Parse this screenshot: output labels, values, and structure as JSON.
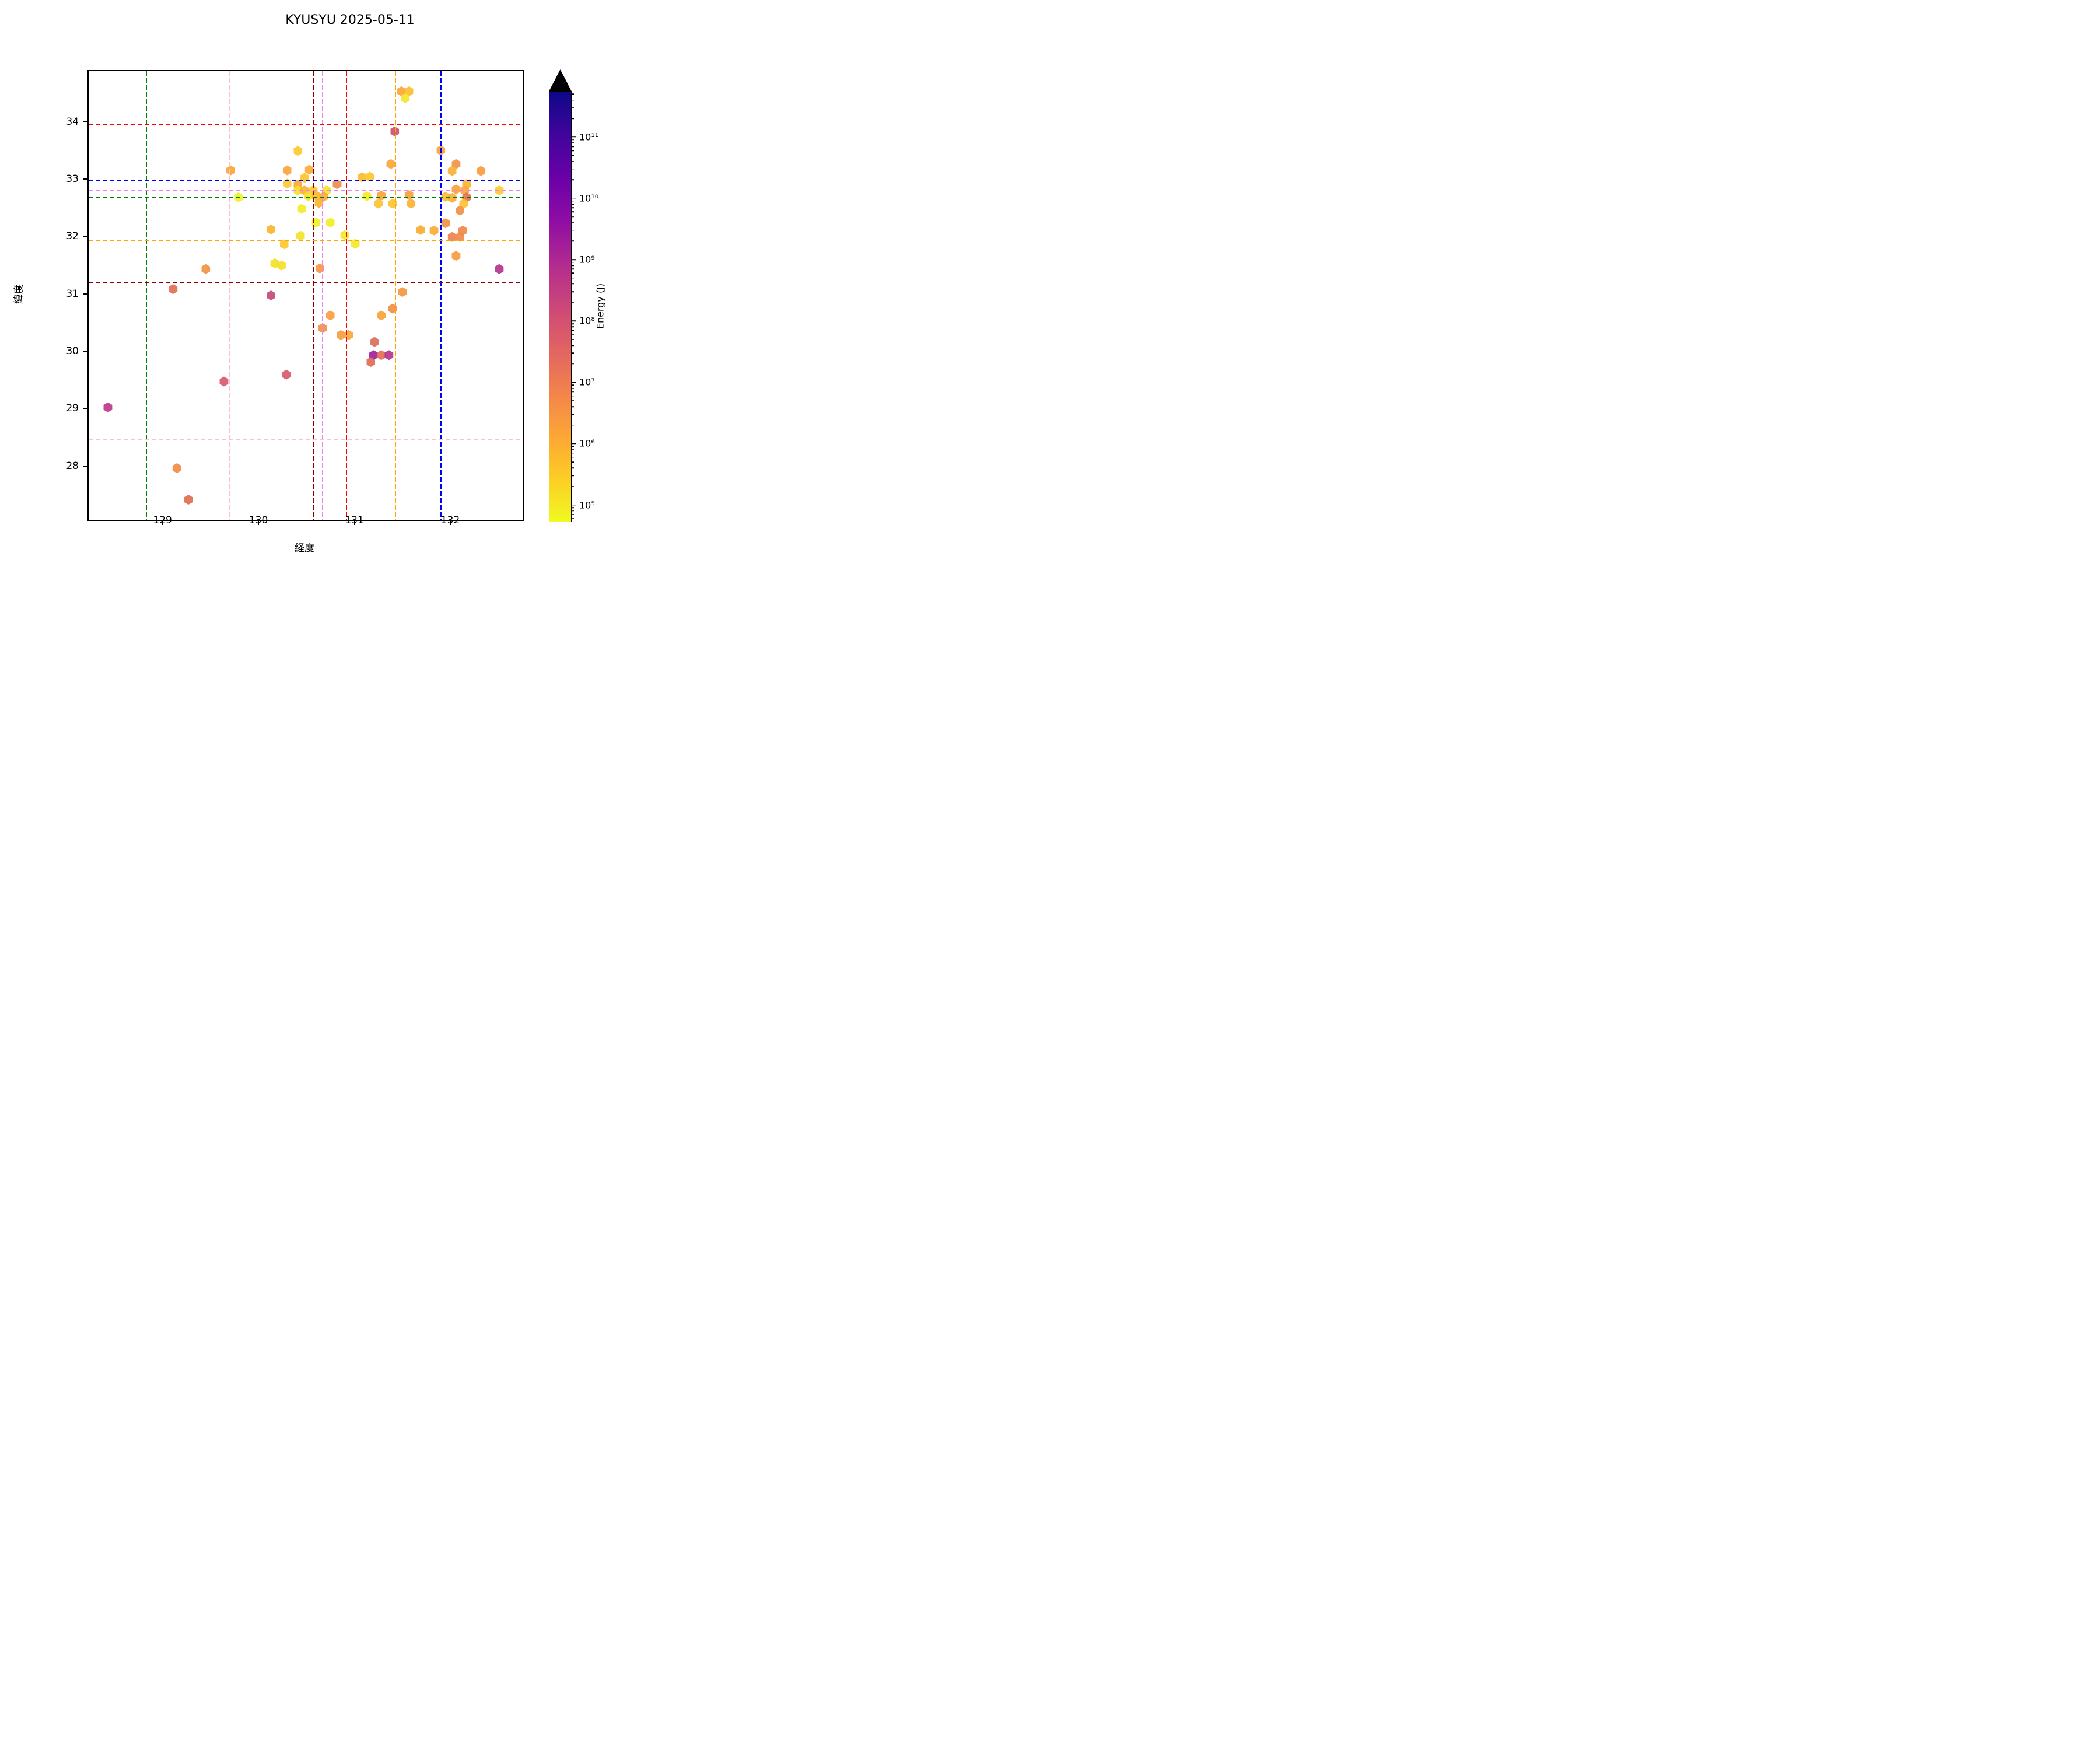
{
  "title": "KYUSYU 2025-05-11",
  "chart_data": {
    "type": "scatter",
    "marker": "hexagon",
    "title": "KYUSYU 2025-05-11",
    "xlabel": "経度",
    "ylabel": "緯度",
    "xlim": [
      128.23,
      132.76
    ],
    "ylim": [
      27.06,
      34.88
    ],
    "xticks": [
      129,
      130,
      131,
      132
    ],
    "yticks": [
      28,
      29,
      30,
      31,
      32,
      33,
      34
    ],
    "grid": false,
    "legend": "none",
    "colorbar": {
      "label": "Energy (J)",
      "scale": "log",
      "colormap": "plasma_r",
      "extend": "max",
      "log_min": 4.73,
      "log_max": 11.74,
      "major_ticks": [
        {
          "exp": 5,
          "label": "10⁵"
        },
        {
          "exp": 6,
          "label": "10⁶"
        },
        {
          "exp": 7,
          "label": "10⁷"
        },
        {
          "exp": 8,
          "label": "10⁸"
        },
        {
          "exp": 9,
          "label": "10⁹"
        },
        {
          "exp": 10,
          "label": "10¹⁰"
        },
        {
          "exp": 11,
          "label": "10¹¹"
        }
      ],
      "gradient_top_to_bottom": [
        "#0d0887",
        "#41049d",
        "#6a00a8",
        "#8f0da4",
        "#b12a90",
        "#cc4778",
        "#e16462",
        "#f2844b",
        "#fca636",
        "#fcce25",
        "#f0f921"
      ]
    },
    "reference_lines": {
      "vertical": [
        {
          "lon": 128.83,
          "color": "#008000",
          "name": "green"
        },
        {
          "lon": 129.7,
          "color": "#ffc0cb",
          "name": "pink"
        },
        {
          "lon": 130.58,
          "color": "#8b0000",
          "name": "darkred"
        },
        {
          "lon": 130.67,
          "color": "#ee82ee",
          "name": "violet"
        },
        {
          "lon": 130.92,
          "color": "#ff0000",
          "name": "red"
        },
        {
          "lon": 131.43,
          "color": "#ffa500",
          "name": "orange"
        },
        {
          "lon": 131.9,
          "color": "#0000ff",
          "name": "blue"
        }
      ],
      "horizontal": [
        {
          "lat": 33.95,
          "color": "#ff0000",
          "name": "red"
        },
        {
          "lat": 32.98,
          "color": "#0000ff",
          "name": "blue"
        },
        {
          "lat": 32.8,
          "color": "#ee82ee",
          "name": "violet"
        },
        {
          "lat": 32.68,
          "color": "#008000",
          "name": "green"
        },
        {
          "lat": 31.93,
          "color": "#ffa500",
          "name": "orange"
        },
        {
          "lat": 31.2,
          "color": "#8b0000",
          "name": "darkred"
        },
        {
          "lat": 28.45,
          "color": "#ffc0cb",
          "name": "pink"
        }
      ]
    },
    "points": [
      {
        "lon": 131.49,
        "lat": 34.53,
        "color": "#fba337",
        "energy_j": 6000000.0
      },
      {
        "lon": 131.57,
        "lat": 34.53,
        "color": "#fcbd2c",
        "energy_j": 800000.0
      },
      {
        "lon": 131.53,
        "lat": 34.41,
        "color": "#f2e526",
        "energy_j": 150000.0
      },
      {
        "lon": 131.42,
        "lat": 33.83,
        "color": "#cc4e6d",
        "energy_j": 500000000.0
      },
      {
        "lon": 131.9,
        "lat": 33.5,
        "color": "#f9a138",
        "energy_j": 7000000.0
      },
      {
        "lon": 130.41,
        "lat": 33.49,
        "color": "#fcc92a",
        "energy_j": 600000.0
      },
      {
        "lon": 131.38,
        "lat": 33.26,
        "color": "#fba336",
        "energy_j": 6000000.0
      },
      {
        "lon": 132.06,
        "lat": 33.26,
        "color": "#f29145",
        "energy_j": 18000000.0
      },
      {
        "lon": 132.02,
        "lat": 33.14,
        "color": "#fbaf31",
        "energy_j": 2000000.0
      },
      {
        "lon": 132.32,
        "lat": 33.14,
        "color": "#f89b3c",
        "energy_j": 9000000.0
      },
      {
        "lon": 129.71,
        "lat": 33.15,
        "color": "#fba434",
        "energy_j": 5000000.0
      },
      {
        "lon": 130.3,
        "lat": 33.15,
        "color": "#fba338",
        "energy_j": 6000000.0
      },
      {
        "lon": 130.53,
        "lat": 33.16,
        "color": "#fbaa33",
        "energy_j": 3000000.0
      },
      {
        "lon": 130.48,
        "lat": 33.02,
        "color": "#fcc42c",
        "energy_j": 700000.0
      },
      {
        "lon": 131.08,
        "lat": 33.03,
        "color": "#fbbb2d",
        "energy_j": 1200000.0
      },
      {
        "lon": 131.16,
        "lat": 33.04,
        "color": "#fcc62b",
        "energy_j": 650000.0
      },
      {
        "lon": 130.3,
        "lat": 32.92,
        "color": "#fcca2b",
        "energy_j": 550000.0
      },
      {
        "lon": 130.41,
        "lat": 32.9,
        "color": "#fba635",
        "energy_j": 4500000.0
      },
      {
        "lon": 130.82,
        "lat": 32.91,
        "color": "#f08b47",
        "energy_j": 28000000.0
      },
      {
        "lon": 132.17,
        "lat": 32.91,
        "color": "#fbb42e",
        "energy_j": 1800000.0
      },
      {
        "lon": 130.41,
        "lat": 32.8,
        "color": "#f2e326",
        "energy_j": 160000.0
      },
      {
        "lon": 130.48,
        "lat": 32.8,
        "color": "#fbb130",
        "energy_j": 2000000.0
      },
      {
        "lon": 130.57,
        "lat": 32.8,
        "color": "#fcca2b",
        "energy_j": 550000.0
      },
      {
        "lon": 130.71,
        "lat": 32.8,
        "color": "#f4e127",
        "energy_j": 180000.0
      },
      {
        "lon": 132.06,
        "lat": 32.82,
        "color": "#fba134",
        "energy_j": 6500000.0
      },
      {
        "lon": 132.15,
        "lat": 32.8,
        "color": "#fba537",
        "energy_j": 5000000.0
      },
      {
        "lon": 132.51,
        "lat": 32.8,
        "color": "#fcca2b",
        "energy_j": 550000.0
      },
      {
        "lon": 129.79,
        "lat": 32.68,
        "color": "#eff124",
        "energy_j": 110000.0
      },
      {
        "lon": 130.52,
        "lat": 32.7,
        "color": "#f4df28",
        "energy_j": 220000.0
      },
      {
        "lon": 130.6,
        "lat": 32.71,
        "color": "#fbb92e",
        "energy_j": 1300000.0
      },
      {
        "lon": 130.68,
        "lat": 32.69,
        "color": "#fba82f",
        "energy_j": 3500000.0
      },
      {
        "lon": 131.13,
        "lat": 32.7,
        "color": "#f2ea25",
        "energy_j": 130000.0
      },
      {
        "lon": 131.28,
        "lat": 32.71,
        "color": "#fba336",
        "energy_j": 6000000.0
      },
      {
        "lon": 131.57,
        "lat": 32.72,
        "color": "#f79d3a",
        "energy_j": 8000000.0
      },
      {
        "lon": 131.95,
        "lat": 32.69,
        "color": "#fcbb2d",
        "energy_j": 1200000.0
      },
      {
        "lon": 132.02,
        "lat": 32.67,
        "color": "#fbac31",
        "energy_j": 2500000.0
      },
      {
        "lon": 132.17,
        "lat": 32.68,
        "color": "#e2714f",
        "energy_j": 60000000.0
      },
      {
        "lon": 130.63,
        "lat": 32.58,
        "color": "#fbb12d",
        "energy_j": 2000000.0
      },
      {
        "lon": 131.25,
        "lat": 32.57,
        "color": "#fcc12c",
        "energy_j": 900000.0
      },
      {
        "lon": 131.4,
        "lat": 32.57,
        "color": "#fcc22c",
        "energy_j": 900000.0
      },
      {
        "lon": 131.59,
        "lat": 32.57,
        "color": "#fbb02f",
        "energy_j": 2200000.0
      },
      {
        "lon": 132.14,
        "lat": 32.57,
        "color": "#fcc12c",
        "energy_j": 900000.0
      },
      {
        "lon": 130.45,
        "lat": 32.48,
        "color": "#f0ee24",
        "energy_j": 120000.0
      },
      {
        "lon": 132.1,
        "lat": 32.45,
        "color": "#f08e44",
        "energy_j": 25000000.0
      },
      {
        "lon": 130.6,
        "lat": 32.24,
        "color": "#f0ef23",
        "energy_j": 120000.0
      },
      {
        "lon": 130.75,
        "lat": 32.24,
        "color": "#f1ed24",
        "energy_j": 130000.0
      },
      {
        "lon": 131.95,
        "lat": 32.23,
        "color": "#f09042",
        "energy_j": 22000000.0
      },
      {
        "lon": 130.13,
        "lat": 32.12,
        "color": "#fbb42c",
        "energy_j": 1800000.0
      },
      {
        "lon": 131.69,
        "lat": 32.11,
        "color": "#fbac30",
        "energy_j": 2500000.0
      },
      {
        "lon": 131.83,
        "lat": 32.1,
        "color": "#fbac30",
        "energy_j": 2500000.0
      },
      {
        "lon": 132.13,
        "lat": 32.1,
        "color": "#ef8746",
        "energy_j": 35000000.0
      },
      {
        "lon": 130.44,
        "lat": 32.01,
        "color": "#f4e225",
        "energy_j": 190000.0
      },
      {
        "lon": 130.9,
        "lat": 32.02,
        "color": "#f2e824",
        "energy_j": 140000.0
      },
      {
        "lon": 132.02,
        "lat": 31.99,
        "color": "#ec8149",
        "energy_j": 45000000.0
      },
      {
        "lon": 132.1,
        "lat": 31.99,
        "color": "#ee8746",
        "energy_j": 35000000.0
      },
      {
        "lon": 131.01,
        "lat": 31.87,
        "color": "#f2e824",
        "energy_j": 140000.0
      },
      {
        "lon": 130.27,
        "lat": 31.86,
        "color": "#fcc62a",
        "energy_j": 650000.0
      },
      {
        "lon": 130.17,
        "lat": 31.53,
        "color": "#f4df26",
        "energy_j": 220000.0
      },
      {
        "lon": 130.24,
        "lat": 31.49,
        "color": "#f4df26",
        "energy_j": 220000.0
      },
      {
        "lon": 129.45,
        "lat": 31.43,
        "color": "#f19140",
        "energy_j": 16000000.0
      },
      {
        "lon": 130.64,
        "lat": 31.44,
        "color": "#f59540",
        "energy_j": 12000000.0
      },
      {
        "lon": 132.06,
        "lat": 31.66,
        "color": "#f69a3c",
        "energy_j": 9000000.0
      },
      {
        "lon": 132.51,
        "lat": 31.43,
        "color": "#b43089",
        "energy_j": 5000000000.0
      },
      {
        "lon": 129.11,
        "lat": 31.08,
        "color": "#e16b51",
        "energy_j": 110000000.0
      },
      {
        "lon": 131.5,
        "lat": 31.03,
        "color": "#f3953e",
        "energy_j": 13000000.0
      },
      {
        "lon": 130.13,
        "lat": 30.97,
        "color": "#c24677",
        "energy_j": 1500000000.0
      },
      {
        "lon": 130.75,
        "lat": 30.62,
        "color": "#f89c3b",
        "energy_j": 8000000.0
      },
      {
        "lon": 131.28,
        "lat": 30.62,
        "color": "#f9a235",
        "energy_j": 6000000.0
      },
      {
        "lon": 131.4,
        "lat": 30.74,
        "color": "#f08d45",
        "energy_j": 26000000.0
      },
      {
        "lon": 130.67,
        "lat": 30.4,
        "color": "#f08f44",
        "energy_j": 24000000.0
      },
      {
        "lon": 130.86,
        "lat": 30.28,
        "color": "#f59c3b",
        "energy_j": 9000000.0
      },
      {
        "lon": 130.94,
        "lat": 30.28,
        "color": "#f9a636",
        "energy_j": 4500000.0
      },
      {
        "lon": 131.21,
        "lat": 30.16,
        "color": "#d96a59",
        "energy_j": 90000000.0
      },
      {
        "lon": 131.2,
        "lat": 29.93,
        "color": "#9c1d9f",
        "energy_j": 20000000000.0
      },
      {
        "lon": 131.28,
        "lat": 29.93,
        "color": "#e06a50",
        "energy_j": 120000000.0
      },
      {
        "lon": 131.36,
        "lat": 29.93,
        "color": "#b52f8c",
        "energy_j": 4500000000.0
      },
      {
        "lon": 131.17,
        "lat": 29.81,
        "color": "#e0694f",
        "energy_j": 120000000.0
      },
      {
        "lon": 130.29,
        "lat": 29.59,
        "color": "#d5566a",
        "energy_j": 400000000.0
      },
      {
        "lon": 129.64,
        "lat": 29.47,
        "color": "#d8576b",
        "energy_j": 350000000.0
      },
      {
        "lon": 128.43,
        "lat": 29.02,
        "color": "#bb3488",
        "energy_j": 3000000000.0
      },
      {
        "lon": 129.15,
        "lat": 27.96,
        "color": "#f08b45",
        "energy_j": 28000000.0
      },
      {
        "lon": 129.27,
        "lat": 27.41,
        "color": "#e0694f",
        "energy_j": 120000000.0
      }
    ]
  }
}
